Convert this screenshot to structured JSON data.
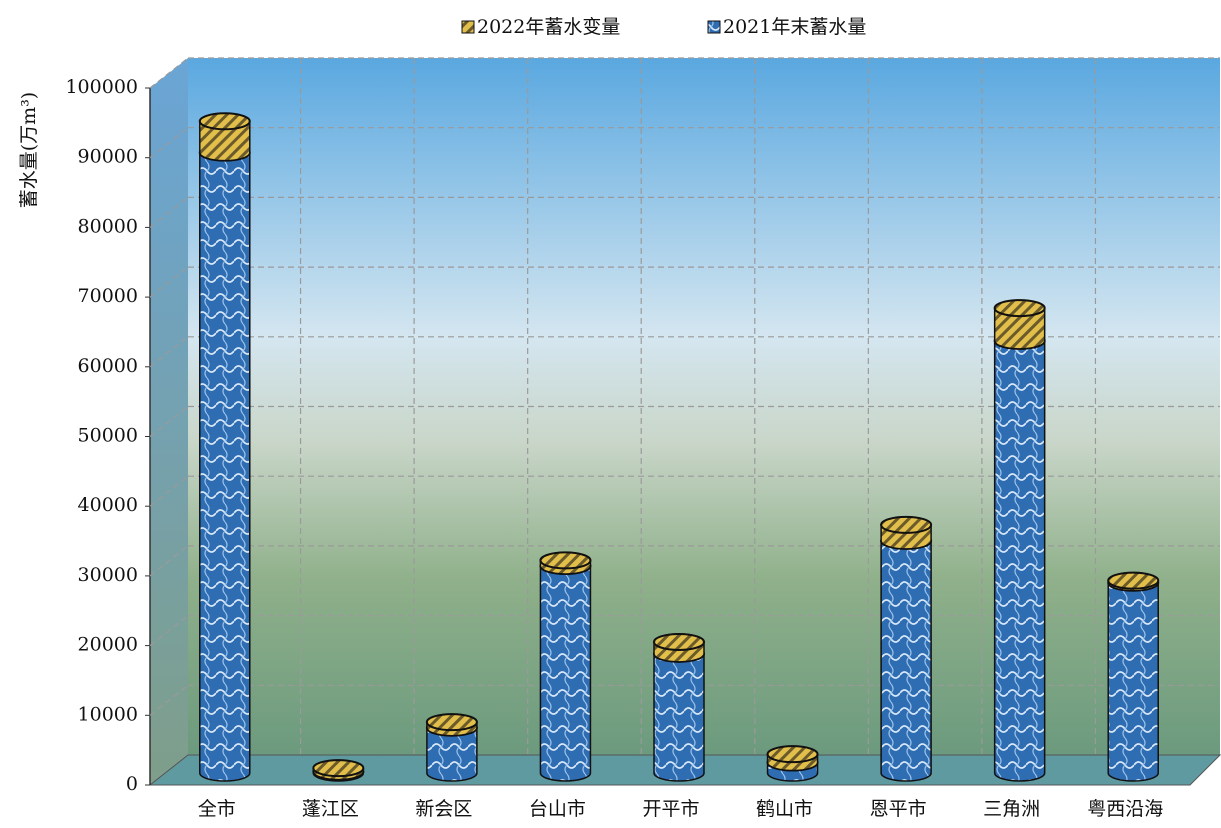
{
  "chart_data": {
    "type": "bar",
    "stacked": true,
    "y_label": "蓄水量(万m³)",
    "categories": [
      "全市",
      "蓬江区",
      "新会区",
      "台山市",
      "开平市",
      "鹤山市",
      "恩平市",
      "三角洲",
      "粤西沿海"
    ],
    "series": [
      {
        "name": "2021年末蓄水量",
        "color": "#2f6db3",
        "values": [
          89000,
          200,
          6500,
          29700,
          17100,
          1500,
          33300,
          62000,
          27300
        ]
      },
      {
        "name": "2022年蓄水变量",
        "color": "#e2bf4a",
        "values": [
          4500,
          500,
          800,
          800,
          1700,
          1200,
          2300,
          4700,
          300
        ]
      }
    ],
    "ylim": [
      0,
      100000
    ],
    "yticks": [
      0,
      10000,
      20000,
      30000,
      40000,
      50000,
      60000,
      70000,
      80000,
      90000,
      100000
    ],
    "grid": true,
    "legend": "top"
  }
}
